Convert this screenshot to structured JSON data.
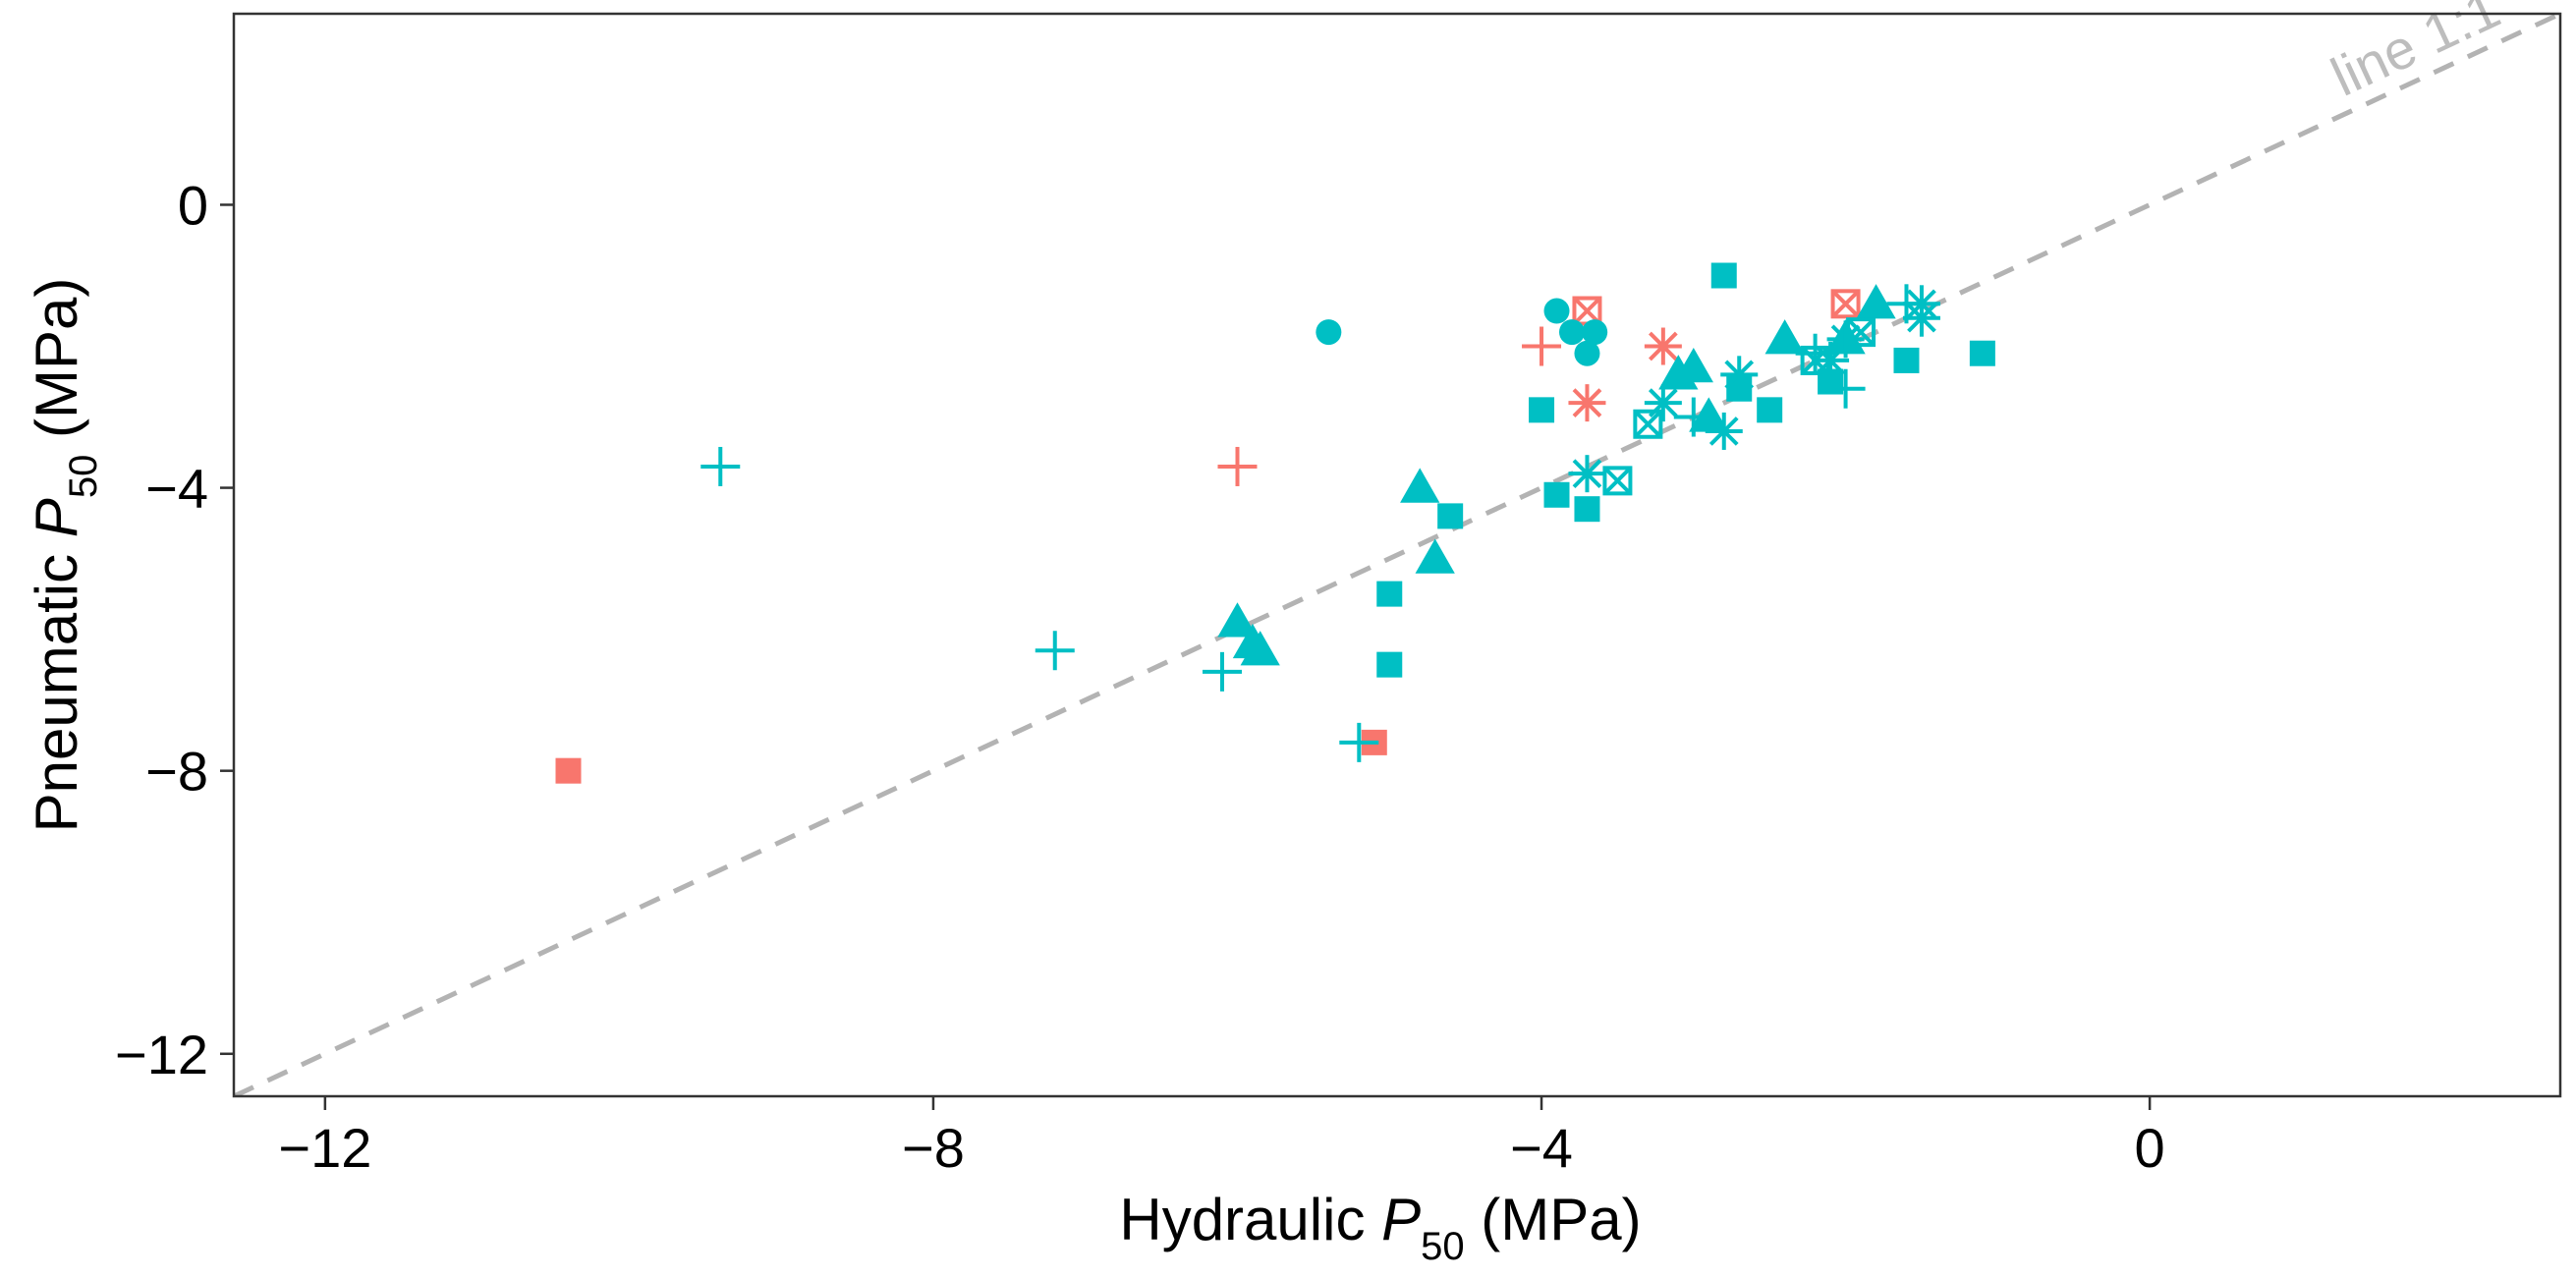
{
  "chart_data": {
    "type": "scatter",
    "xlabel": {
      "prefix": "Hydraulic ",
      "symbol": "P",
      "subscript": "50",
      "suffix": " (MPa)"
    },
    "ylabel": {
      "prefix": "Pneumatic ",
      "symbol": "P",
      "subscript": "50",
      "suffix": " (MPa)"
    },
    "xlim": [
      -12.6,
      2.7
    ],
    "ylim": [
      -12.6,
      2.7
    ],
    "x_ticks": [
      {
        "value": -12,
        "label": "−12"
      },
      {
        "value": -8,
        "label": "−8"
      },
      {
        "value": -4,
        "label": "−4"
      },
      {
        "value": 0,
        "label": "0"
      }
    ],
    "y_ticks": [
      {
        "value": -12,
        "label": "−12"
      },
      {
        "value": -8,
        "label": "−8"
      },
      {
        "value": -4,
        "label": "−4"
      },
      {
        "value": 0,
        "label": "0"
      }
    ],
    "grid": false,
    "reference_line": {
      "type": "identity",
      "style": "dashed",
      "color": "#b3b3b3",
      "label": "line 1:1"
    },
    "colors": {
      "red": "#f8766d",
      "teal": "#00bfc4"
    },
    "points": [
      {
        "x": -10.4,
        "y": -8.0,
        "shape": "square-filled",
        "color": "red"
      },
      {
        "x": -5.1,
        "y": -7.6,
        "shape": "square-filled",
        "color": "red"
      },
      {
        "x": -6.0,
        "y": -3.7,
        "shape": "plus",
        "color": "red"
      },
      {
        "x": -4.0,
        "y": -2.0,
        "shape": "plus",
        "color": "red"
      },
      {
        "x": -3.7,
        "y": -1.5,
        "shape": "square-cross",
        "color": "red"
      },
      {
        "x": -2.0,
        "y": -1.4,
        "shape": "square-cross",
        "color": "red"
      },
      {
        "x": -3.7,
        "y": -2.8,
        "shape": "asterisk",
        "color": "red"
      },
      {
        "x": -3.2,
        "y": -2.0,
        "shape": "asterisk",
        "color": "red"
      },
      {
        "x": -9.4,
        "y": -3.7,
        "shape": "plus",
        "color": "teal"
      },
      {
        "x": -7.2,
        "y": -6.3,
        "shape": "plus",
        "color": "teal"
      },
      {
        "x": -6.1,
        "y": -6.6,
        "shape": "plus",
        "color": "teal"
      },
      {
        "x": -5.2,
        "y": -7.6,
        "shape": "plus",
        "color": "teal"
      },
      {
        "x": -3.0,
        "y": -3.0,
        "shape": "plus",
        "color": "teal"
      },
      {
        "x": -2.0,
        "y": -2.6,
        "shape": "plus",
        "color": "teal"
      },
      {
        "x": -1.6,
        "y": -1.4,
        "shape": "plus",
        "color": "teal"
      },
      {
        "x": -2.2,
        "y": -2.1,
        "shape": "plus",
        "color": "teal"
      },
      {
        "x": -5.4,
        "y": -1.8,
        "shape": "circle-filled",
        "color": "teal"
      },
      {
        "x": -3.9,
        "y": -1.5,
        "shape": "circle-filled",
        "color": "teal"
      },
      {
        "x": -3.8,
        "y": -1.8,
        "shape": "circle-filled",
        "color": "teal"
      },
      {
        "x": -3.7,
        "y": -2.1,
        "shape": "circle-filled",
        "color": "teal"
      },
      {
        "x": -3.65,
        "y": -1.8,
        "shape": "circle-filled",
        "color": "teal"
      },
      {
        "x": -6.0,
        "y": -5.9,
        "shape": "triangle-filled",
        "color": "teal"
      },
      {
        "x": -5.9,
        "y": -6.2,
        "shape": "triangle-filled",
        "color": "teal"
      },
      {
        "x": -5.85,
        "y": -6.3,
        "shape": "triangle-filled",
        "color": "teal"
      },
      {
        "x": -4.8,
        "y": -4.0,
        "shape": "triangle-filled",
        "color": "teal"
      },
      {
        "x": -4.7,
        "y": -5.0,
        "shape": "triangle-filled",
        "color": "teal"
      },
      {
        "x": -3.1,
        "y": -2.4,
        "shape": "triangle-filled",
        "color": "teal"
      },
      {
        "x": -3.0,
        "y": -2.3,
        "shape": "triangle-filled",
        "color": "teal"
      },
      {
        "x": -2.9,
        "y": -3.0,
        "shape": "triangle-filled",
        "color": "teal"
      },
      {
        "x": -2.4,
        "y": -1.9,
        "shape": "triangle-filled",
        "color": "teal"
      },
      {
        "x": -2.0,
        "y": -1.9,
        "shape": "triangle-filled",
        "color": "teal"
      },
      {
        "x": -1.8,
        "y": -1.4,
        "shape": "triangle-filled",
        "color": "teal"
      },
      {
        "x": -5.0,
        "y": -5.5,
        "shape": "square-filled",
        "color": "teal"
      },
      {
        "x": -5.0,
        "y": -6.5,
        "shape": "square-filled",
        "color": "teal"
      },
      {
        "x": -4.6,
        "y": -4.4,
        "shape": "square-filled",
        "color": "teal"
      },
      {
        "x": -4.0,
        "y": -2.9,
        "shape": "square-filled",
        "color": "teal"
      },
      {
        "x": -3.9,
        "y": -4.1,
        "shape": "square-filled",
        "color": "teal"
      },
      {
        "x": -3.7,
        "y": -4.3,
        "shape": "square-filled",
        "color": "teal"
      },
      {
        "x": -2.8,
        "y": -1.0,
        "shape": "square-filled",
        "color": "teal"
      },
      {
        "x": -2.5,
        "y": -2.9,
        "shape": "square-filled",
        "color": "teal"
      },
      {
        "x": -2.7,
        "y": -2.6,
        "shape": "square-filled",
        "color": "teal"
      },
      {
        "x": -2.1,
        "y": -2.5,
        "shape": "square-filled",
        "color": "teal"
      },
      {
        "x": -1.6,
        "y": -2.2,
        "shape": "square-filled",
        "color": "teal"
      },
      {
        "x": -1.1,
        "y": -2.1,
        "shape": "square-filled",
        "color": "teal"
      },
      {
        "x": -3.5,
        "y": -3.9,
        "shape": "square-cross",
        "color": "teal"
      },
      {
        "x": -3.3,
        "y": -3.1,
        "shape": "square-cross",
        "color": "teal"
      },
      {
        "x": -2.2,
        "y": -2.2,
        "shape": "square-cross",
        "color": "teal"
      },
      {
        "x": -1.9,
        "y": -1.8,
        "shape": "square-cross",
        "color": "teal"
      },
      {
        "x": -3.7,
        "y": -3.8,
        "shape": "asterisk",
        "color": "teal"
      },
      {
        "x": -3.2,
        "y": -2.8,
        "shape": "asterisk",
        "color": "teal"
      },
      {
        "x": -2.8,
        "y": -3.2,
        "shape": "asterisk",
        "color": "teal"
      },
      {
        "x": -2.7,
        "y": -2.4,
        "shape": "asterisk",
        "color": "teal"
      },
      {
        "x": -2.1,
        "y": -2.2,
        "shape": "asterisk",
        "color": "teal"
      },
      {
        "x": -2.0,
        "y": -1.9,
        "shape": "asterisk",
        "color": "teal"
      },
      {
        "x": -1.5,
        "y": -1.4,
        "shape": "asterisk",
        "color": "teal"
      },
      {
        "x": -1.5,
        "y": -1.6,
        "shape": "asterisk",
        "color": "teal"
      }
    ]
  }
}
